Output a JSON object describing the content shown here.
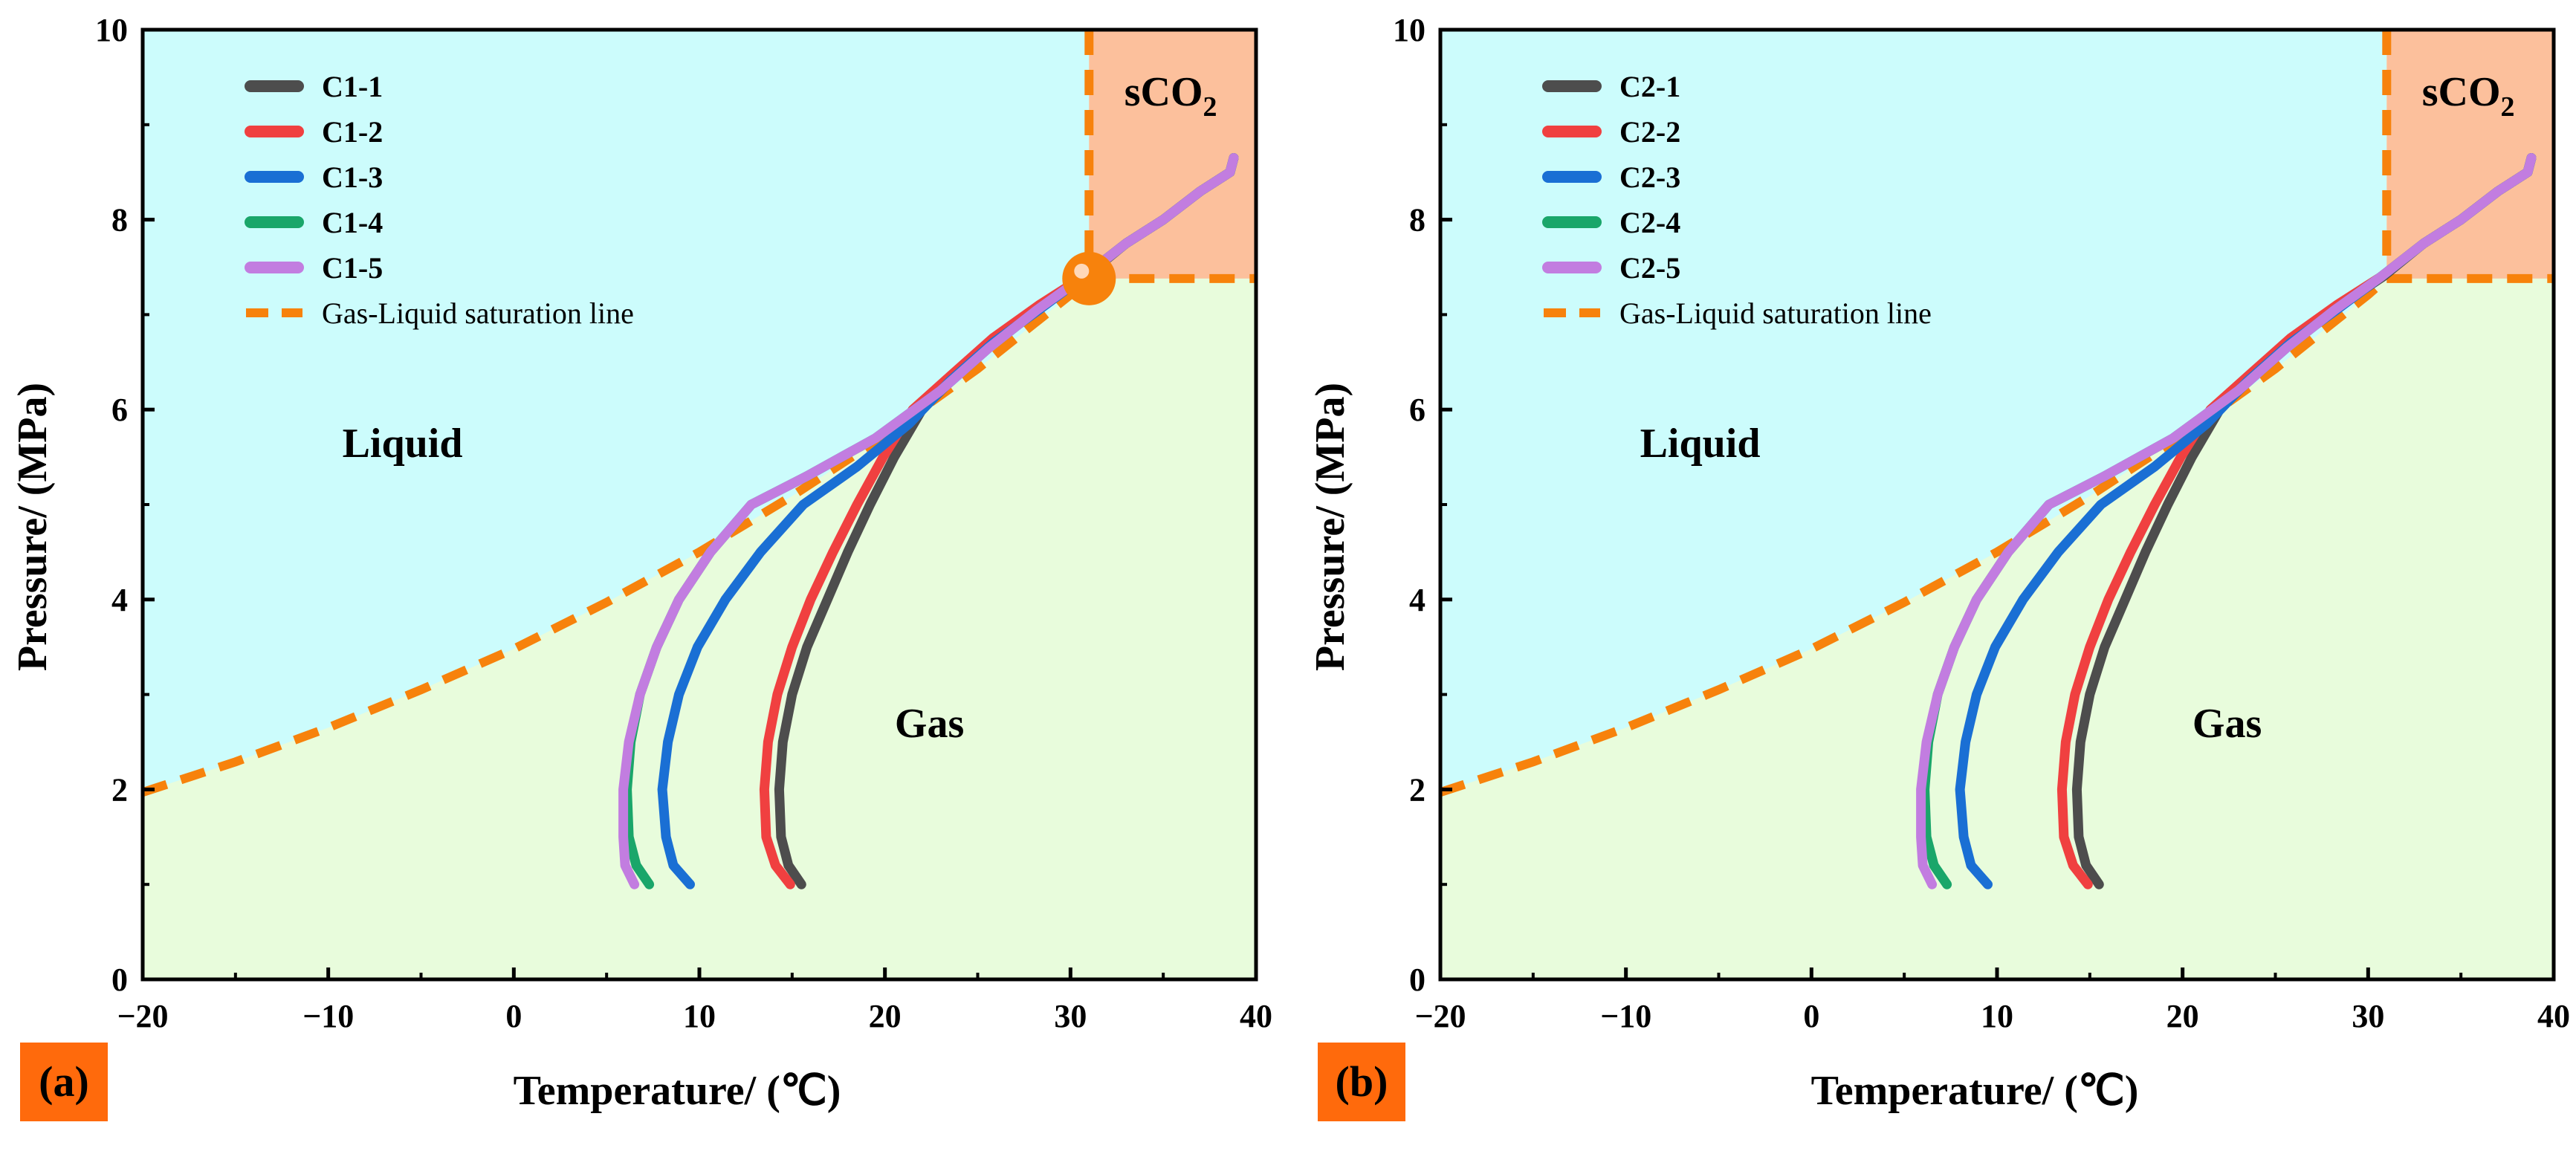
{
  "colors": {
    "liquid_fill": "#ccfcfc",
    "gas_fill": "#e8fcdc",
    "sco2_fill": "#fcc09c",
    "saturation_line": "#f7820c",
    "critical_point": "#f7820c",
    "panel_tag_bg": "#ff6a0c"
  },
  "chart_data": [
    {
      "type": "line",
      "panel": "(a)",
      "xlabel": "Temperature/ (℃)",
      "ylabel": "Pressure/ (MPa)",
      "xlim": [
        -20,
        40
      ],
      "ylim": [
        0,
        10
      ],
      "xticks": [
        "−20",
        "−10",
        "0",
        "10",
        "20",
        "30",
        "40"
      ],
      "yticks": [
        "0",
        "2",
        "4",
        "6",
        "8",
        "10"
      ],
      "region_labels": {
        "liquid": "Liquid",
        "gas": "Gas",
        "sco2": "sCO",
        "sco2_sub": "2"
      },
      "critical_point": {
        "x": 31,
        "y": 7.38
      },
      "legend_position": "top-left",
      "saturation_line": {
        "name": "Gas-Liquid saturation line",
        "x": [
          -20,
          -15,
          -10,
          -5,
          0,
          5,
          10,
          15,
          20,
          25,
          30,
          31
        ],
        "y": [
          1.97,
          2.29,
          2.65,
          3.05,
          3.48,
          3.97,
          4.5,
          5.09,
          5.73,
          6.43,
          7.21,
          7.38
        ]
      },
      "supercritical_edges": {
        "x_start": 31,
        "p_start": 7.38
      },
      "series": [
        {
          "name": "C1-1",
          "color": "#4d4d4d",
          "x": [
            15.5,
            14.8,
            14.4,
            14.3,
            14.5,
            15.0,
            15.8,
            16.9,
            18.0,
            19.2,
            20.5,
            22.0,
            23.8,
            26.0,
            28.5,
            30.8,
            33.0,
            35.0,
            37.0,
            38.6,
            38.8
          ],
          "y": [
            1.0,
            1.2,
            1.5,
            2.0,
            2.5,
            3.0,
            3.5,
            4.0,
            4.5,
            5.0,
            5.5,
            6.0,
            6.35,
            6.75,
            7.1,
            7.4,
            7.75,
            8.0,
            8.3,
            8.5,
            8.65
          ]
        },
        {
          "name": "C1-2",
          "color": "#f04040",
          "x": [
            14.9,
            14.1,
            13.6,
            13.5,
            13.7,
            14.2,
            15.0,
            16.0,
            17.2,
            18.5,
            19.9,
            21.5,
            23.5,
            25.8,
            28.3,
            30.7,
            33.0,
            35.0,
            37.0,
            38.6,
            38.8
          ],
          "y": [
            1.0,
            1.2,
            1.5,
            2.0,
            2.5,
            3.0,
            3.5,
            4.0,
            4.5,
            5.0,
            5.5,
            6.0,
            6.35,
            6.75,
            7.1,
            7.4,
            7.75,
            8.0,
            8.3,
            8.5,
            8.65
          ]
        },
        {
          "name": "C1-3",
          "color": "#1a6fd4",
          "x": [
            9.5,
            8.6,
            8.2,
            8.0,
            8.3,
            8.9,
            9.9,
            11.4,
            13.3,
            15.6,
            18.5,
            21.3,
            23.5,
            25.8,
            28.3,
            30.7,
            33.0,
            35.0,
            37.0,
            38.6,
            38.8
          ],
          "y": [
            1.0,
            1.2,
            1.5,
            2.0,
            2.5,
            3.0,
            3.5,
            4.0,
            4.5,
            5.0,
            5.4,
            5.85,
            6.3,
            6.7,
            7.05,
            7.4,
            7.75,
            8.0,
            8.3,
            8.5,
            8.65
          ]
        },
        {
          "name": "C1-4",
          "color": "#1aa66a",
          "x": [
            7.3,
            6.6,
            6.2,
            6.1,
            6.3,
            6.8,
            7.7,
            8.9,
            10.6,
            12.8,
            15.8,
            19.5,
            23.0,
            25.6,
            28.2,
            30.7,
            33.0,
            35.0,
            37.0,
            38.6,
            38.8
          ],
          "y": [
            1.0,
            1.2,
            1.5,
            2.0,
            2.5,
            3.0,
            3.5,
            4.0,
            4.5,
            5.0,
            5.3,
            5.7,
            6.2,
            6.65,
            7.05,
            7.4,
            7.75,
            8.0,
            8.3,
            8.5,
            8.65
          ]
        },
        {
          "name": "C1-5",
          "color": "#c27de0",
          "x": [
            6.5,
            6.0,
            5.9,
            5.9,
            6.2,
            6.8,
            7.7,
            8.9,
            10.6,
            12.8,
            15.8,
            19.5,
            23.0,
            25.6,
            28.2,
            30.7,
            33.0,
            35.0,
            37.0,
            38.6,
            38.8
          ],
          "y": [
            1.0,
            1.2,
            1.5,
            2.0,
            2.5,
            3.0,
            3.5,
            4.0,
            4.5,
            5.0,
            5.3,
            5.7,
            6.2,
            6.65,
            7.05,
            7.4,
            7.75,
            8.0,
            8.3,
            8.5,
            8.65
          ]
        }
      ]
    },
    {
      "type": "line",
      "panel": "(b)",
      "xlabel": "Temperature/ (℃)",
      "ylabel": "Pressure/ (MPa)",
      "xlim": [
        -20,
        40
      ],
      "ylim": [
        0,
        10
      ],
      "xticks": [
        "−20",
        "−10",
        "0",
        "10",
        "20",
        "30",
        "40"
      ],
      "yticks": [
        "0",
        "2",
        "4",
        "6",
        "8",
        "10"
      ],
      "region_labels": {
        "liquid": "Liquid",
        "gas": "Gas",
        "sco2": "sCO",
        "sco2_sub": "2"
      },
      "critical_point": null,
      "legend_position": "top-left",
      "saturation_line": {
        "name": "Gas-Liquid saturation line",
        "x": [
          -20,
          -15,
          -10,
          -5,
          0,
          5,
          10,
          15,
          20,
          25,
          30,
          31
        ],
        "y": [
          1.97,
          2.29,
          2.65,
          3.05,
          3.48,
          3.97,
          4.5,
          5.09,
          5.73,
          6.43,
          7.21,
          7.38
        ]
      },
      "supercritical_edges": {
        "x_start": 31,
        "p_start": 7.38
      },
      "series": [
        {
          "name": "C2-1",
          "color": "#4d4d4d",
          "x": [
            15.5,
            14.8,
            14.4,
            14.3,
            14.5,
            15.0,
            15.8,
            16.9,
            18.0,
            19.2,
            20.5,
            22.0,
            23.8,
            26.0,
            28.5,
            30.8,
            33.0,
            35.0,
            37.0,
            38.6,
            38.8
          ],
          "y": [
            1.0,
            1.2,
            1.5,
            2.0,
            2.5,
            3.0,
            3.5,
            4.0,
            4.5,
            5.0,
            5.5,
            6.0,
            6.35,
            6.75,
            7.1,
            7.4,
            7.75,
            8.0,
            8.3,
            8.5,
            8.65
          ]
        },
        {
          "name": "C2-2",
          "color": "#f04040",
          "x": [
            14.9,
            14.1,
            13.6,
            13.5,
            13.7,
            14.2,
            15.0,
            16.0,
            17.2,
            18.5,
            19.9,
            21.5,
            23.5,
            25.8,
            28.3,
            30.7,
            33.0,
            35.0,
            37.0,
            38.6,
            38.8
          ],
          "y": [
            1.0,
            1.2,
            1.5,
            2.0,
            2.5,
            3.0,
            3.5,
            4.0,
            4.5,
            5.0,
            5.5,
            6.0,
            6.35,
            6.75,
            7.1,
            7.4,
            7.75,
            8.0,
            8.3,
            8.5,
            8.65
          ]
        },
        {
          "name": "C2-3",
          "color": "#1a6fd4",
          "x": [
            9.5,
            8.6,
            8.2,
            8.0,
            8.3,
            8.9,
            9.9,
            11.4,
            13.3,
            15.6,
            18.5,
            21.3,
            23.5,
            25.8,
            28.3,
            30.7,
            33.0,
            35.0,
            37.0,
            38.6,
            38.8
          ],
          "y": [
            1.0,
            1.2,
            1.5,
            2.0,
            2.5,
            3.0,
            3.5,
            4.0,
            4.5,
            5.0,
            5.4,
            5.85,
            6.3,
            6.7,
            7.05,
            7.4,
            7.75,
            8.0,
            8.3,
            8.5,
            8.65
          ]
        },
        {
          "name": "C2-4",
          "color": "#1aa66a",
          "x": [
            7.3,
            6.6,
            6.2,
            6.1,
            6.3,
            6.8,
            7.7,
            8.9,
            10.6,
            12.8,
            15.8,
            19.5,
            23.0,
            25.6,
            28.2,
            30.7,
            33.0,
            35.0,
            37.0,
            38.6,
            38.8
          ],
          "y": [
            1.0,
            1.2,
            1.5,
            2.0,
            2.5,
            3.0,
            3.5,
            4.0,
            4.5,
            5.0,
            5.3,
            5.7,
            6.2,
            6.65,
            7.05,
            7.4,
            7.75,
            8.0,
            8.3,
            8.5,
            8.65
          ]
        },
        {
          "name": "C2-5",
          "color": "#c27de0",
          "x": [
            6.5,
            6.0,
            5.9,
            5.9,
            6.2,
            6.8,
            7.7,
            8.9,
            10.6,
            12.8,
            15.8,
            19.5,
            23.0,
            25.6,
            28.2,
            30.7,
            33.0,
            35.0,
            37.0,
            38.6,
            38.8
          ],
          "y": [
            1.0,
            1.2,
            1.5,
            2.0,
            2.5,
            3.0,
            3.5,
            4.0,
            4.5,
            5.0,
            5.3,
            5.7,
            6.2,
            6.65,
            7.05,
            7.4,
            7.75,
            8.0,
            8.3,
            8.5,
            8.65
          ]
        }
      ]
    }
  ]
}
